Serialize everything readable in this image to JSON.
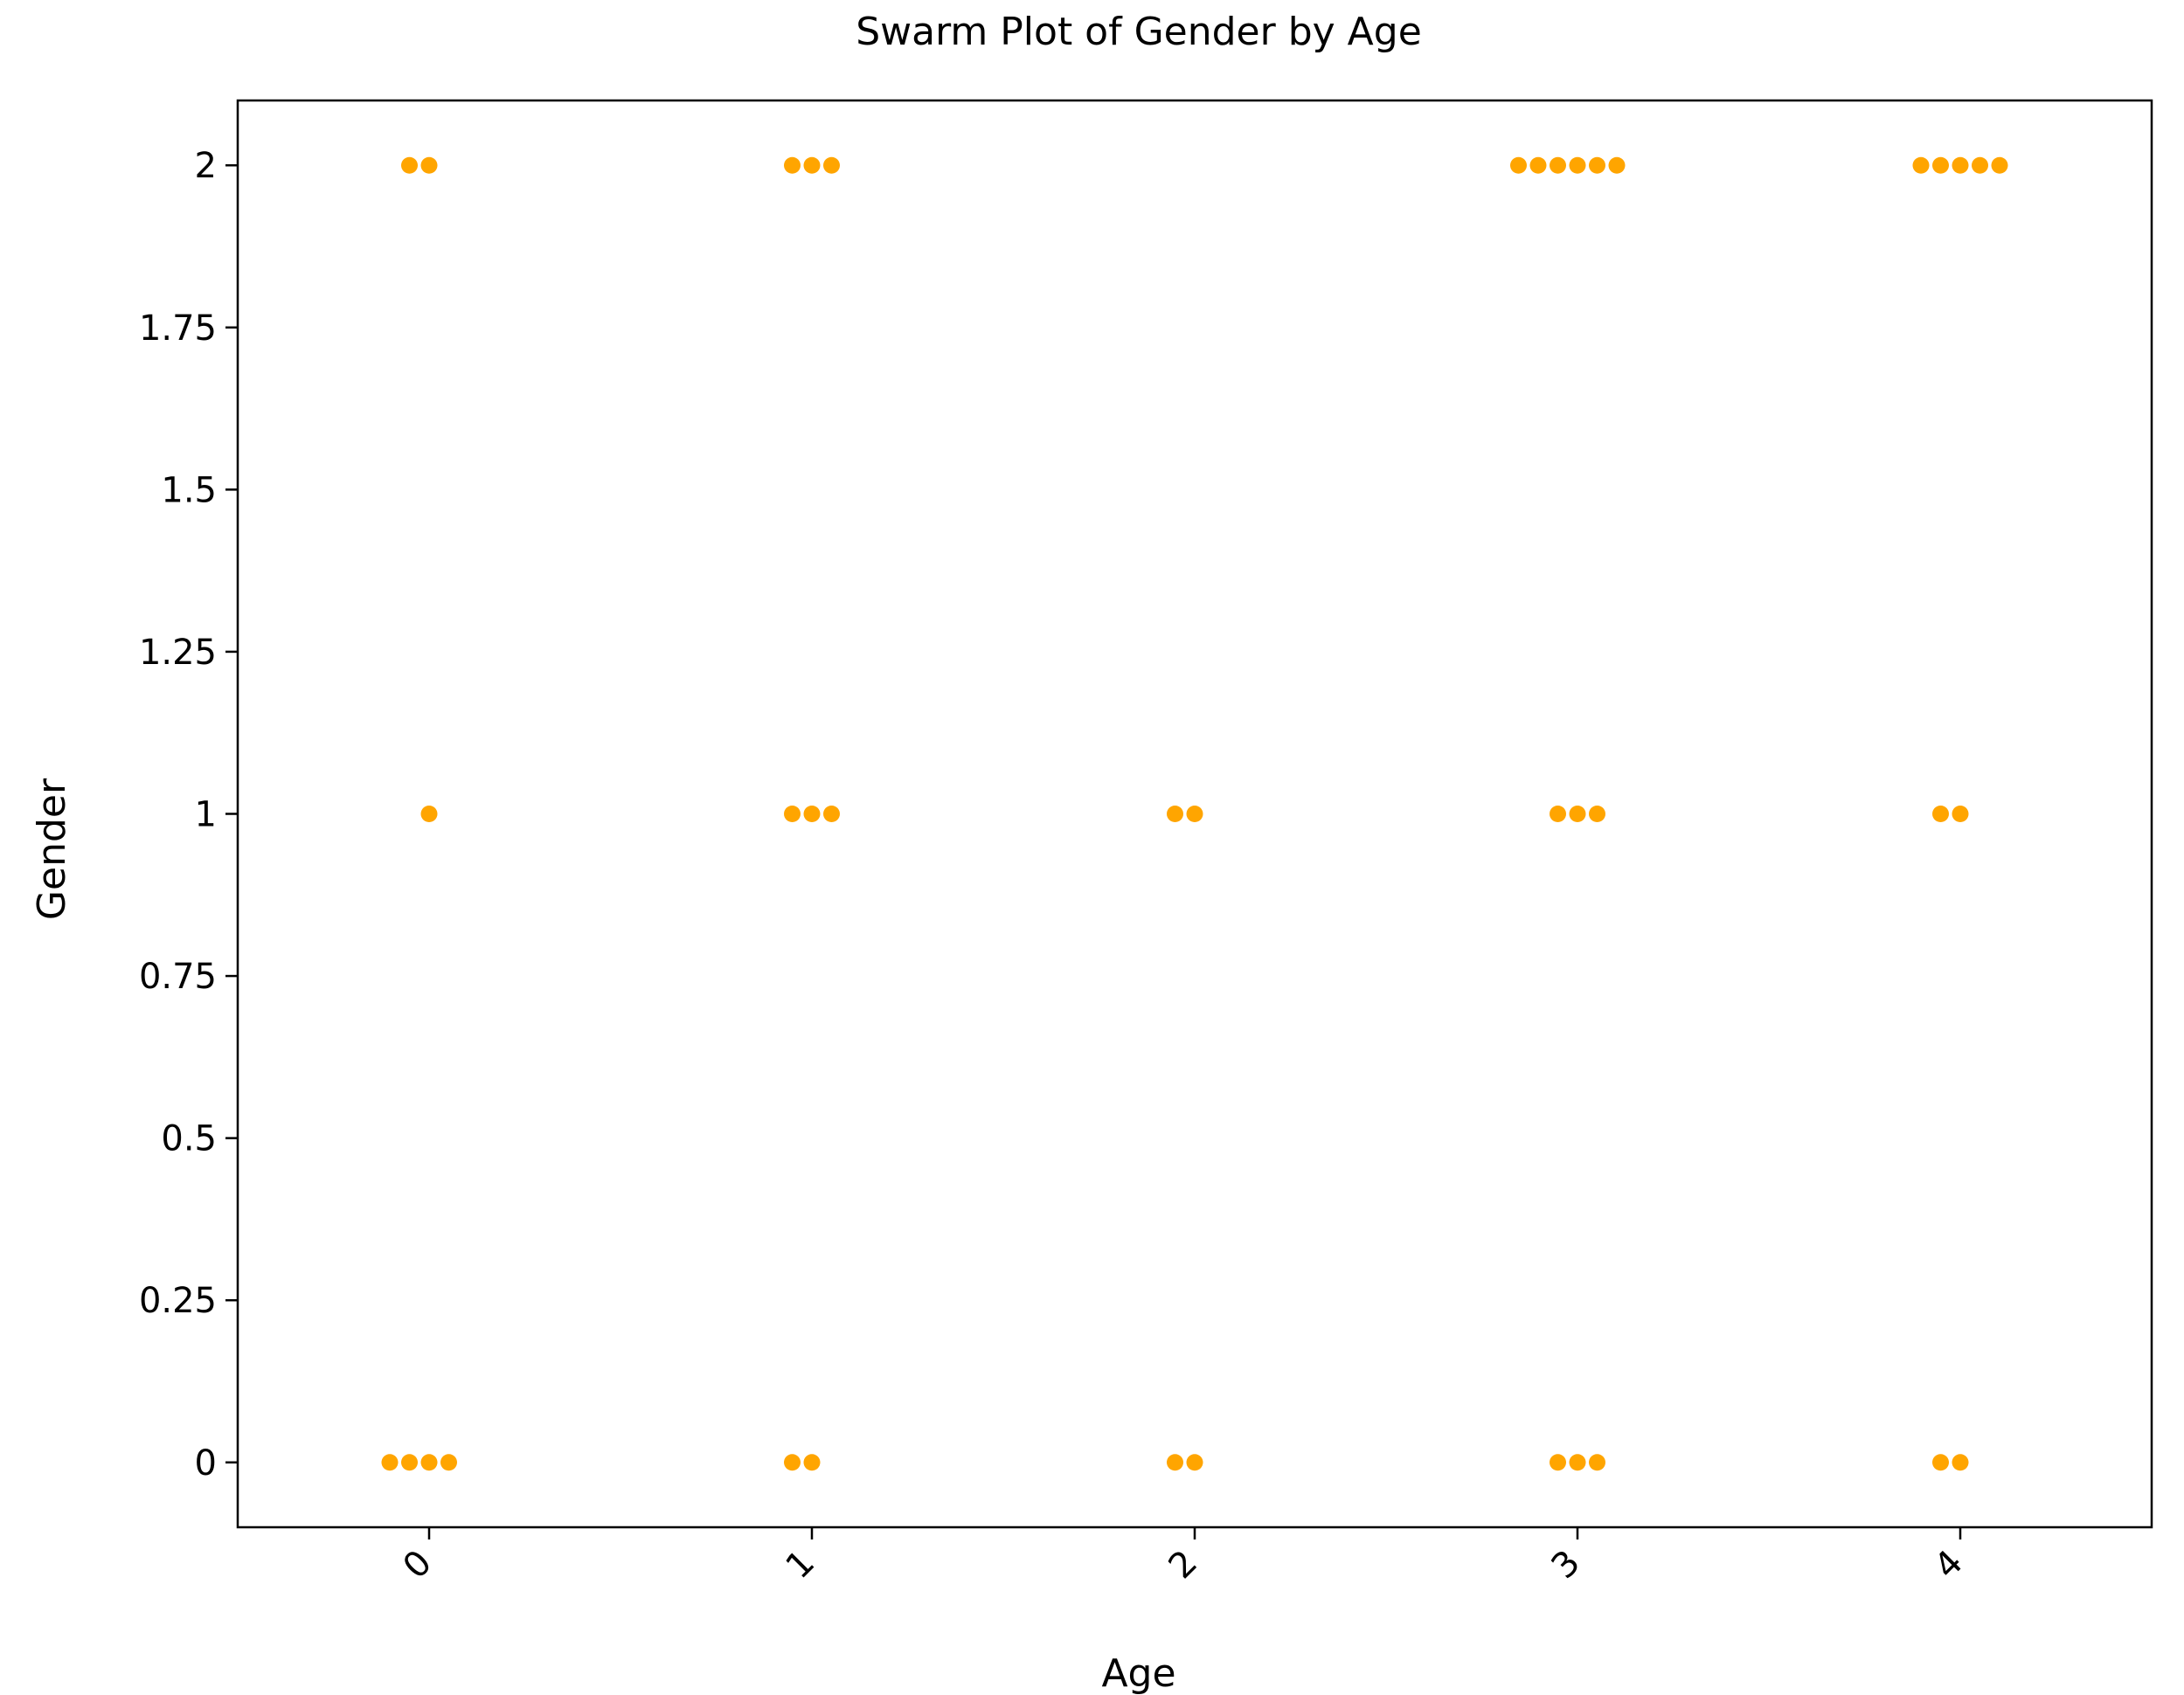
{
  "chart_data": {
    "type": "scatter",
    "title": "Swarm Plot of Gender by Age",
    "xlabel": "Age",
    "ylabel": "Gender",
    "categories": [
      "0",
      "1",
      "2",
      "3",
      "4"
    ],
    "yticks": [
      {
        "value": 0,
        "label": "0"
      },
      {
        "value": 0.25,
        "label": "0.25"
      },
      {
        "value": 0.5,
        "label": "0.5"
      },
      {
        "value": 0.75,
        "label": "0.75"
      },
      {
        "value": 1,
        "label": "1"
      },
      {
        "value": 1.25,
        "label": "1.25"
      },
      {
        "value": 1.5,
        "label": "1.5"
      },
      {
        "value": 1.75,
        "label": "1.75"
      },
      {
        "value": 2,
        "label": "2"
      }
    ],
    "ylim": [
      -0.1,
      2.1
    ],
    "xlim": [
      -0.5,
      4.5
    ],
    "grid": false,
    "legend": "none",
    "marker_color": "#FFA500",
    "groups": [
      {
        "x": 0,
        "y": 2,
        "count": 2
      },
      {
        "x": 0,
        "y": 1,
        "count": 1
      },
      {
        "x": 0,
        "y": 0,
        "count": 4
      },
      {
        "x": 1,
        "y": 2,
        "count": 3
      },
      {
        "x": 1,
        "y": 1,
        "count": 3
      },
      {
        "x": 1,
        "y": 0,
        "count": 2
      },
      {
        "x": 2,
        "y": 1,
        "count": 2
      },
      {
        "x": 2,
        "y": 0,
        "count": 2
      },
      {
        "x": 3,
        "y": 2,
        "count": 6
      },
      {
        "x": 3,
        "y": 1,
        "count": 3
      },
      {
        "x": 3,
        "y": 0,
        "count": 3
      },
      {
        "x": 4,
        "y": 2,
        "count": 5
      },
      {
        "x": 4,
        "y": 1,
        "count": 2
      },
      {
        "x": 4,
        "y": 0,
        "count": 2
      }
    ]
  }
}
